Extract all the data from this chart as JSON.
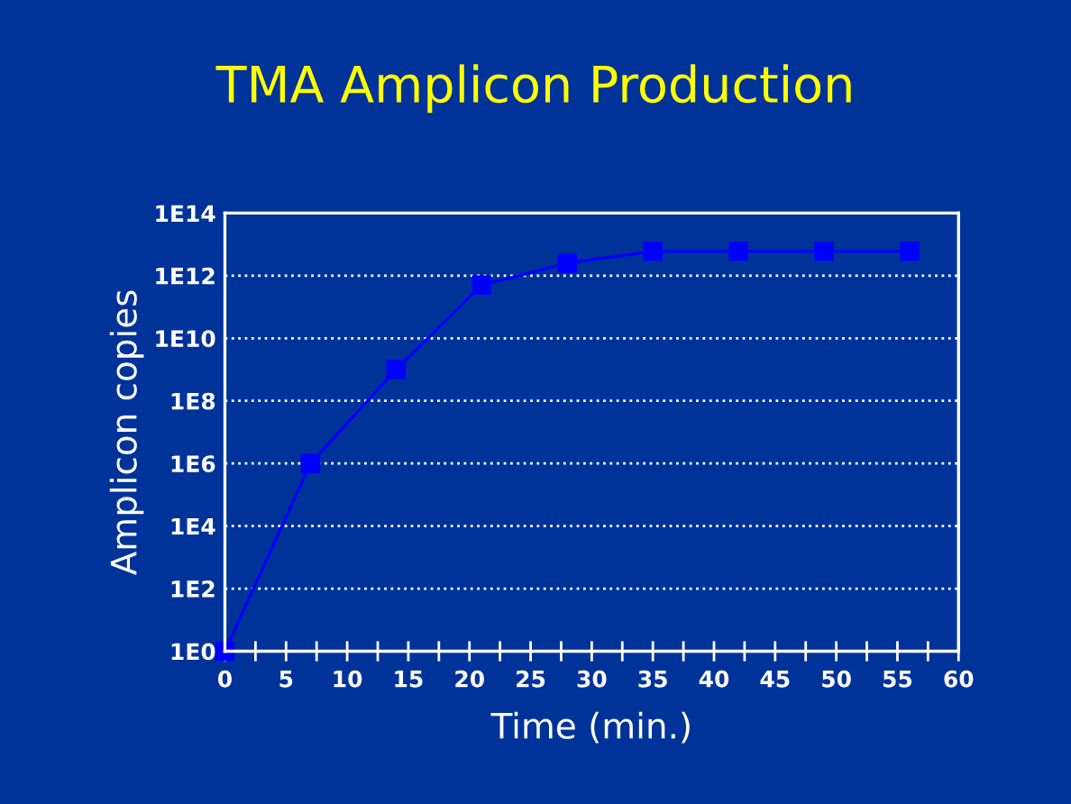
{
  "chart_data": {
    "type": "line",
    "title": "TMA Amplicon Production",
    "xlabel": "Time (min.)",
    "ylabel": "Amplicon copies",
    "x": [
      0,
      7,
      14,
      21,
      28,
      35,
      42,
      49,
      56
    ],
    "series": [
      {
        "color": "#0000ff",
        "values": [
          1,
          1000000,
          1000000000,
          500000000000,
          2500000000000,
          6000000000000,
          6000000000000,
          6000000000000,
          6000000000000
        ]
      }
    ],
    "log": "y",
    "xlim": [
      0,
      60
    ],
    "xticks": [
      0,
      5,
      10,
      15,
      20,
      25,
      30,
      35,
      40,
      45,
      50,
      55,
      60
    ],
    "ylim": [
      1,
      100000000000000
    ],
    "yticks": [
      {
        "value": 1,
        "label": "1E0"
      },
      {
        "value": 100,
        "label": "1E2"
      },
      {
        "value": 10000,
        "label": "1E4"
      },
      {
        "value": 1000000,
        "label": "1E6"
      },
      {
        "value": 100000000,
        "label": "1E8"
      },
      {
        "value": 10000000000,
        "label": "1E10"
      },
      {
        "value": 1000000000000,
        "label": "1E12"
      },
      {
        "value": 100000000000000,
        "label": "1E14"
      }
    ],
    "grid": "y",
    "marker": "square",
    "line_style": "solid"
  }
}
